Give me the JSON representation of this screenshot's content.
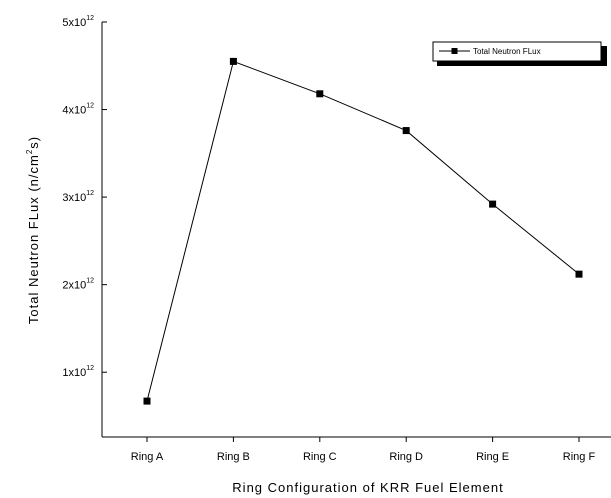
{
  "chart_data": {
    "type": "line",
    "title": "",
    "xlabel": "Ring Configuration of KRR Fuel Element",
    "ylabel_prefix": "Total Neutron FLux (n/cm",
    "ylabel_sup": "2",
    "ylabel_suffix": "s)",
    "categories": [
      "Ring A",
      "Ring B",
      "Ring C",
      "Ring D",
      "Ring E",
      "Ring F"
    ],
    "series": [
      {
        "name": "Total Neutron FLux",
        "values": [
          670000000000.0,
          4550000000000.0,
          4180000000000.0,
          3760000000000.0,
          2920000000000.0,
          2120000000000.0
        ],
        "color": "#000000",
        "marker": "square"
      }
    ],
    "ylim": [
      260000000000.0,
      5000000000000.0
    ],
    "yticks": [
      {
        "value": 1000000000000.0,
        "mantissa": "1x10",
        "exp": "12"
      },
      {
        "value": 2000000000000.0,
        "mantissa": "2x10",
        "exp": "12"
      },
      {
        "value": 3000000000000.0,
        "mantissa": "3x10",
        "exp": "12"
      },
      {
        "value": 4000000000000.0,
        "mantissa": "4x10",
        "exp": "12"
      },
      {
        "value": 5000000000000.0,
        "mantissa": "5x10",
        "exp": "12"
      }
    ],
    "legend_position": "top-right",
    "grid": false
  }
}
